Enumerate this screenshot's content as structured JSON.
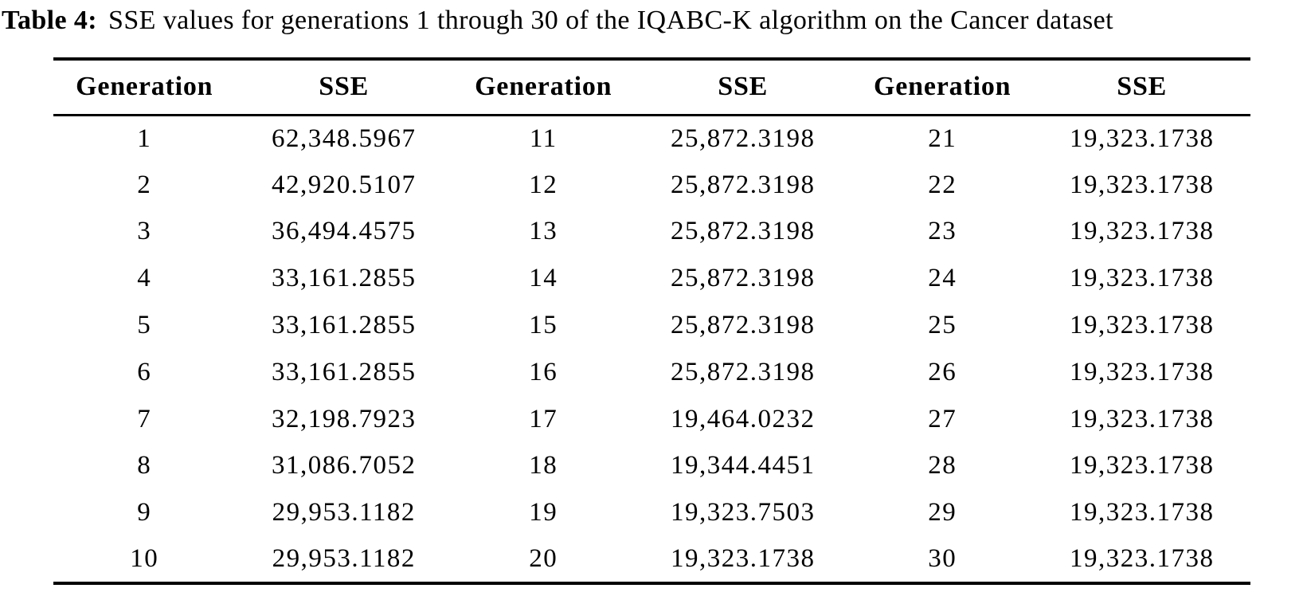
{
  "caption": {
    "label": "Table 4:",
    "text": "SSE values for generations 1 through 30 of the IQABC-K algorithm on the Cancer dataset"
  },
  "colors": {
    "text": "#000000",
    "background": "#ffffff",
    "rule": "#000000"
  },
  "table": {
    "headers": [
      "Generation",
      "SSE",
      "Generation",
      "SSE",
      "Generation",
      "SSE"
    ],
    "rows": [
      [
        "1",
        "62,348.5967",
        "11",
        "25,872.3198",
        "21",
        "19,323.1738"
      ],
      [
        "2",
        "42,920.5107",
        "12",
        "25,872.3198",
        "22",
        "19,323.1738"
      ],
      [
        "3",
        "36,494.4575",
        "13",
        "25,872.3198",
        "23",
        "19,323.1738"
      ],
      [
        "4",
        "33,161.2855",
        "14",
        "25,872.3198",
        "24",
        "19,323.1738"
      ],
      [
        "5",
        "33,161.2855",
        "15",
        "25,872.3198",
        "25",
        "19,323.1738"
      ],
      [
        "6",
        "33,161.2855",
        "16",
        "25,872.3198",
        "26",
        "19,323.1738"
      ],
      [
        "7",
        "32,198.7923",
        "17",
        "19,464.0232",
        "27",
        "19,323.1738"
      ],
      [
        "8",
        "31,086.7052",
        "18",
        "19,344.4451",
        "28",
        "19,323.1738"
      ],
      [
        "9",
        "29,953.1182",
        "19",
        "19,323.7503",
        "29",
        "19,323.1738"
      ],
      [
        "10",
        "29,953.1182",
        "20",
        "19,323.1738",
        "30",
        "19,323.1738"
      ]
    ]
  }
}
